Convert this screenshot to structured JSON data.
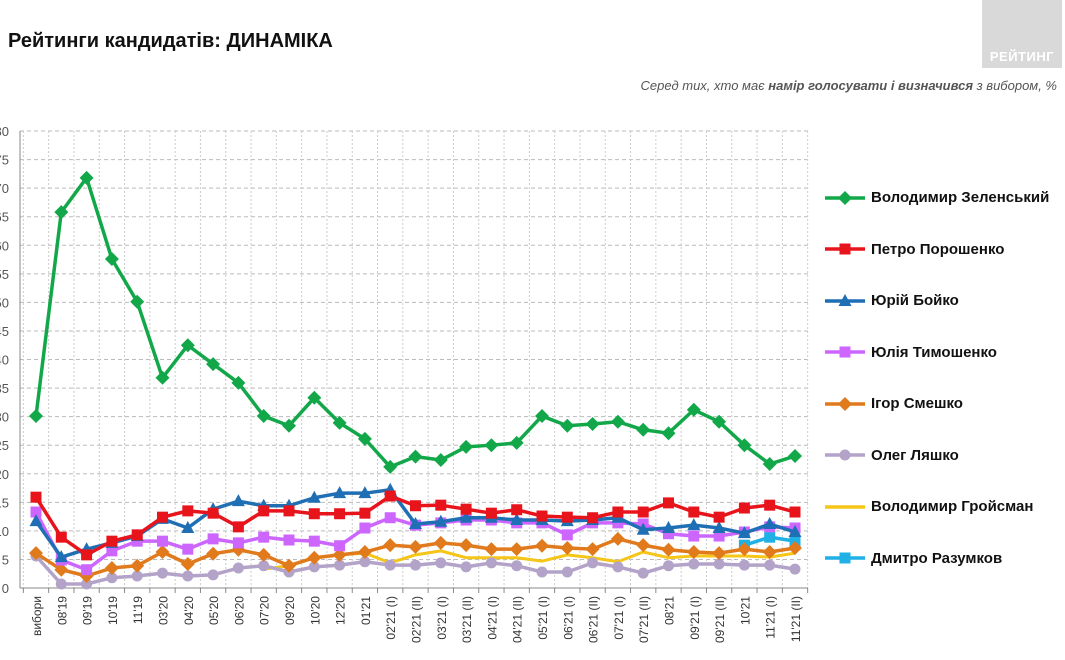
{
  "header": {
    "title": "Рейтинги кандидатів: ДИНАМІКА",
    "logo": "РЕЙТИНГ",
    "subtitle_pre": "Серед тих, хто має ",
    "subtitle_bold": "намір голосувати і визначився",
    "subtitle_post": " з вибором, %"
  },
  "chart_data": {
    "type": "line",
    "ylim": [
      0,
      80
    ],
    "yticks": [
      0,
      5,
      10,
      15,
      20,
      25,
      30,
      35,
      40,
      45,
      50,
      55,
      60,
      65,
      70,
      75,
      80
    ],
    "grid": true,
    "legend": "right",
    "categories": [
      "вибори",
      "08'19",
      "09'19",
      "10'19",
      "11'19",
      "03'20",
      "04'20",
      "05'20",
      "06'20",
      "07'20",
      "09'20",
      "10'20",
      "12'20",
      "01'21",
      "02'21 (I)",
      "02'21 (II)",
      "03'21 (I)",
      "03'21 (II)",
      "04'21 (I)",
      "04'21 (II)",
      "05'21 (I)",
      "06'21 (I)",
      "06'21 (II)",
      "07'21 (I)",
      "07'21 (II)",
      "08'21",
      "09'21 (I)",
      "09'21 (II)",
      "10'21",
      "11'21 (I)",
      "11'21 (II)"
    ],
    "series": [
      {
        "name": "Володимир Зеленський",
        "color": "#12a84a",
        "marker": "diamond",
        "values": [
          30.1,
          65.8,
          71.8,
          57.6,
          50.1,
          36.8,
          42.5,
          39.2,
          35.9,
          30.1,
          28.4,
          33.3,
          28.9,
          26.1,
          21.2,
          23.0,
          22.4,
          24.7,
          25.0,
          25.4,
          30.1,
          28.4,
          28.7,
          29.1,
          27.7,
          27.1,
          31.2,
          29.1,
          25.0,
          21.7,
          23.1
        ]
      },
      {
        "name": "Петро Порошенко",
        "color": "#e8141c",
        "marker": "square",
        "values": [
          15.9,
          8.9,
          5.8,
          8.2,
          9.3,
          12.4,
          13.5,
          13.1,
          10.7,
          13.5,
          13.5,
          13.0,
          13.0,
          13.1,
          16.1,
          14.4,
          14.5,
          13.8,
          13.1,
          13.7,
          12.6,
          12.4,
          12.3,
          13.3,
          13.3,
          14.9,
          13.3,
          12.4,
          14.0,
          14.5,
          13.3
        ]
      },
      {
        "name": "Юрій Бойко",
        "color": "#1f6fb5",
        "marker": "triangle",
        "values": [
          11.7,
          5.4,
          6.8,
          7.9,
          9.1,
          12.1,
          10.5,
          13.8,
          15.2,
          14.4,
          14.4,
          15.8,
          16.6,
          16.6,
          17.2,
          11.2,
          11.6,
          12.3,
          12.3,
          11.9,
          11.9,
          11.7,
          11.9,
          12.3,
          10.2,
          10.5,
          11.0,
          10.5,
          9.6,
          11.2,
          9.8
        ]
      },
      {
        "name": "Юлія Тимошенко",
        "color": "#cc66ff",
        "marker": "square",
        "values": [
          13.3,
          4.9,
          3.2,
          6.5,
          8.2,
          8.2,
          6.8,
          8.6,
          7.9,
          8.9,
          8.4,
          8.2,
          7.4,
          10.5,
          12.3,
          11.0,
          11.4,
          11.9,
          11.9,
          11.4,
          11.4,
          9.3,
          11.4,
          11.4,
          11.2,
          9.5,
          9.1,
          9.1,
          9.8,
          10.7,
          10.5
        ]
      },
      {
        "name": "Ігор Смешко",
        "color": "#e07a1c",
        "marker": "diamond",
        "values": [
          6.1,
          3.2,
          2.1,
          3.5,
          3.9,
          6.3,
          4.2,
          6.0,
          6.7,
          5.8,
          3.9,
          5.3,
          5.8,
          6.3,
          7.5,
          7.2,
          7.9,
          7.5,
          6.8,
          6.8,
          7.4,
          7.0,
          6.8,
          8.6,
          7.5,
          6.7,
          6.3,
          6.1,
          6.8,
          6.3,
          7.0
        ]
      },
      {
        "name": "Олег Ляшко",
        "color": "#b3a3c8",
        "marker": "circle",
        "values": [
          5.6,
          0.7,
          0.7,
          1.8,
          2.1,
          2.6,
          2.1,
          2.3,
          3.5,
          3.9,
          2.8,
          3.7,
          4.0,
          4.6,
          4.0,
          4.0,
          4.4,
          3.7,
          4.4,
          3.9,
          2.8,
          2.8,
          4.4,
          3.7,
          2.6,
          3.9,
          4.2,
          4.2,
          4.0,
          4.0,
          3.3
        ]
      },
      {
        "name": "Володимир Гройсман",
        "color": "#f5c518",
        "marker": "none",
        "values": [
          null,
          null,
          null,
          null,
          null,
          null,
          null,
          null,
          null,
          3.3,
          3.9,
          5.3,
          5.8,
          6.1,
          4.4,
          5.8,
          6.5,
          5.3,
          5.3,
          5.3,
          4.7,
          5.8,
          5.3,
          4.6,
          6.3,
          5.3,
          5.6,
          5.6,
          5.6,
          5.4,
          6.1
        ]
      },
      {
        "name": "Дмитро Разумков",
        "color": "#1fb0e6",
        "marker": "square",
        "values": [
          null,
          null,
          null,
          null,
          null,
          null,
          null,
          null,
          null,
          null,
          null,
          null,
          null,
          null,
          null,
          null,
          null,
          null,
          null,
          null,
          null,
          null,
          null,
          null,
          null,
          null,
          null,
          null,
          7.5,
          8.9,
          8.2
        ]
      }
    ]
  }
}
